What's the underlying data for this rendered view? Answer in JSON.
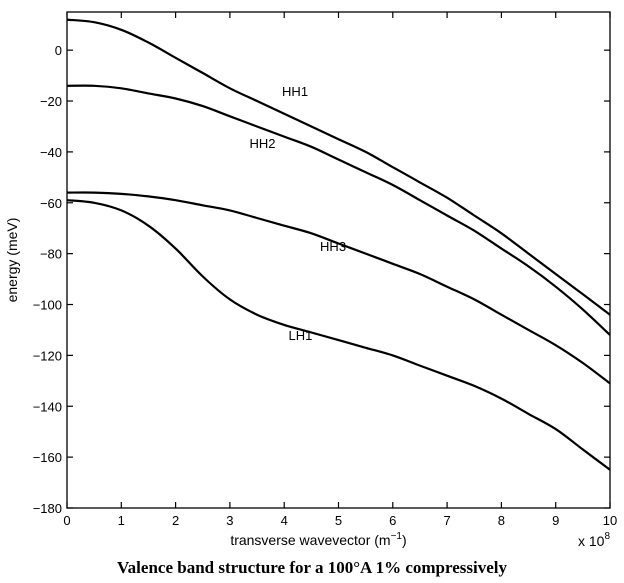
{
  "caption": "Valence band structure for a 100°A  1% compressively",
  "chart_data": {
    "type": "line",
    "title": "",
    "xlabel": "transverse wavevector (m",
    "xlabel_sup": "−1",
    "xlabel_close": ")",
    "ylabel": "energy (meV)",
    "x_multiplier_base": "x 10",
    "x_multiplier_exp": "8",
    "xlim": [
      0,
      10
    ],
    "ylim": [
      -180,
      15
    ],
    "xticks": [
      0,
      1,
      2,
      3,
      4,
      5,
      6,
      7,
      8,
      9,
      10
    ],
    "yticks": [
      0,
      -20,
      -40,
      -60,
      -80,
      -100,
      -120,
      -140,
      -160,
      -180
    ],
    "grid": false,
    "series": [
      {
        "name": "HH1",
        "x": [
          0,
          0.5,
          1,
          1.5,
          2,
          2.5,
          3,
          3.5,
          4,
          4.5,
          5,
          5.5,
          6,
          6.5,
          7,
          7.5,
          8,
          8.5,
          9,
          9.5,
          10
        ],
        "y": [
          12,
          11,
          8,
          3,
          -3,
          -9,
          -15,
          -20,
          -25,
          -30,
          -35,
          -40,
          -46,
          -52,
          -58,
          -65,
          -72,
          -80,
          -88,
          -96,
          -104
        ]
      },
      {
        "name": "HH2",
        "x": [
          0,
          0.5,
          1,
          1.5,
          2,
          2.5,
          3,
          3.5,
          4,
          4.5,
          5,
          5.5,
          6,
          6.5,
          7,
          7.5,
          8,
          8.5,
          9,
          9.5,
          10
        ],
        "y": [
          -14,
          -14,
          -15,
          -17,
          -19,
          -22,
          -26,
          -30,
          -34,
          -38,
          -43,
          -48,
          -53,
          -59,
          -65,
          -71,
          -78,
          -85,
          -93,
          -102,
          -112
        ]
      },
      {
        "name": "HH3",
        "x": [
          0,
          0.5,
          1,
          1.5,
          2,
          2.5,
          3,
          3.5,
          4,
          4.5,
          5,
          5.5,
          6,
          6.5,
          7,
          7.5,
          8,
          8.5,
          9,
          9.5,
          10
        ],
        "y": [
          -56,
          -56,
          -56.5,
          -57.5,
          -59,
          -61,
          -63,
          -66,
          -69,
          -72,
          -76,
          -80,
          -84,
          -88,
          -93,
          -98,
          -104,
          -110,
          -116,
          -123,
          -131
        ]
      },
      {
        "name": "LH1",
        "x": [
          0,
          0.5,
          1,
          1.5,
          2,
          2.5,
          3,
          3.5,
          4,
          4.5,
          5,
          5.5,
          6,
          6.5,
          7,
          7.5,
          8,
          8.5,
          9,
          9.5,
          10
        ],
        "y": [
          -59,
          -60,
          -63,
          -69,
          -78,
          -89,
          -98,
          -104,
          -108,
          -111,
          -114,
          -117,
          -120,
          -124,
          -128,
          -132,
          -137,
          -143,
          -149,
          -157,
          -165
        ]
      }
    ],
    "curve_labels": [
      {
        "text": "HH1",
        "x": 4.2,
        "y": -18
      },
      {
        "text": "HH2",
        "x": 3.6,
        "y": -38.5
      },
      {
        "text": "HH3",
        "x": 4.9,
        "y": -79
      },
      {
        "text": "LH1",
        "x": 4.3,
        "y": -114
      }
    ]
  }
}
